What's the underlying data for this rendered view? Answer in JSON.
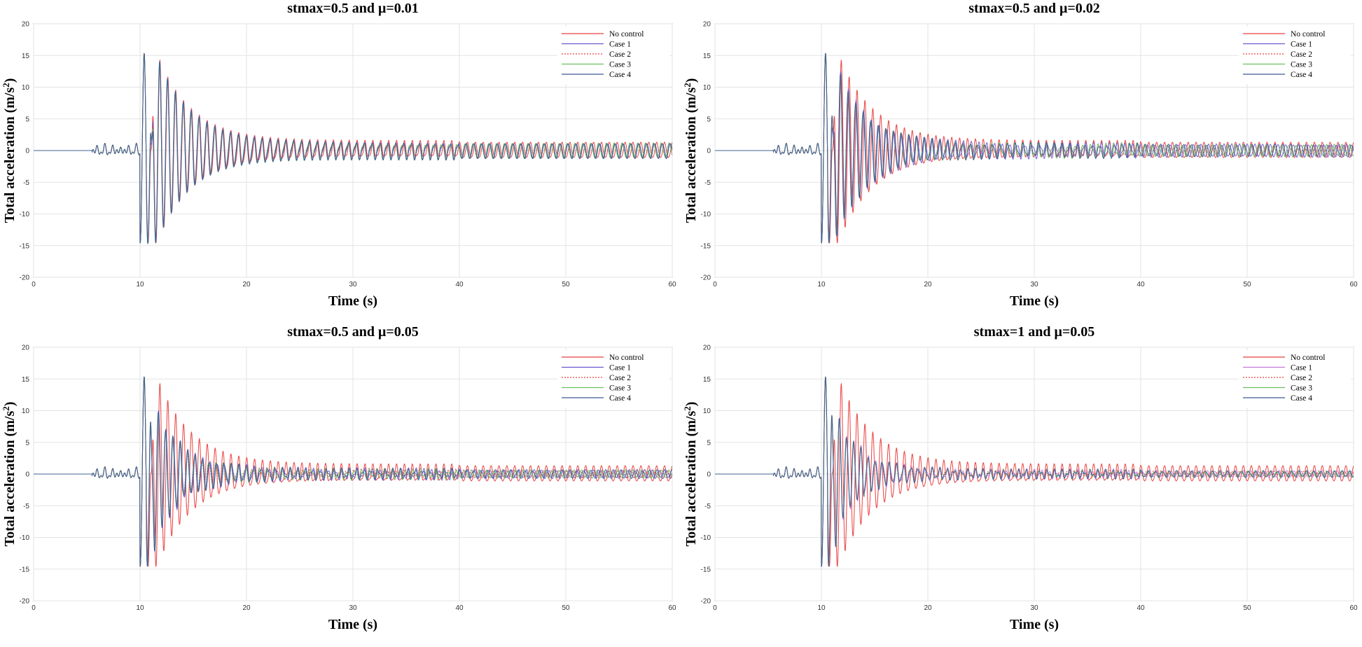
{
  "chart_data": [
    {
      "type": "line",
      "title": "stmax=0.5 and μ=0.01",
      "xlabel": "Time (s)",
      "ylabel_main": "Total acceleration (m/s",
      "ylabel_sup": "2",
      "ylabel_end": ")",
      "xlim": [
        0,
        60
      ],
      "ylim": [
        -20,
        20
      ],
      "xticks": [
        0,
        10,
        20,
        30,
        40,
        50,
        60
      ],
      "yticks": [
        20,
        15,
        10,
        5,
        0,
        -5,
        -10,
        -15,
        -20
      ],
      "grid": true,
      "legend_position": "top-right",
      "series": [
        {
          "name": "No control",
          "color": "#e8413e",
          "dash": "solid",
          "reduction": 1.0
        },
        {
          "name": "Case 1",
          "color": "#6a5acd",
          "dash": "solid",
          "reduction": 0.98
        },
        {
          "name": "Case 2",
          "color": "#e8413e",
          "dash": "dotted",
          "reduction": 0.97
        },
        {
          "name": "Case 3",
          "color": "#6abf5e",
          "dash": "solid",
          "reduction": 0.97
        },
        {
          "name": "Case 4",
          "color": "#3a5a98",
          "dash": "solid",
          "reduction": 0.98
        }
      ]
    },
    {
      "type": "line",
      "title": "stmax=0.5 and μ=0.02",
      "xlabel": "Time (s)",
      "ylabel_main": "Total acceleration (m/s",
      "ylabel_sup": "2",
      "ylabel_end": ")",
      "xlim": [
        0,
        60
      ],
      "ylim": [
        -20,
        20
      ],
      "xticks": [
        0,
        10,
        20,
        30,
        40,
        50,
        60
      ],
      "yticks": [
        20,
        15,
        10,
        5,
        0,
        -5,
        -10,
        -15,
        -20
      ],
      "grid": true,
      "legend_position": "top-right",
      "series": [
        {
          "name": "No control",
          "color": "#e8413e",
          "dash": "solid",
          "reduction": 1.0
        },
        {
          "name": "Case 1",
          "color": "#6a5acd",
          "dash": "solid",
          "reduction": 0.85
        },
        {
          "name": "Case 2",
          "color": "#e8413e",
          "dash": "dotted",
          "reduction": 0.8
        },
        {
          "name": "Case 3",
          "color": "#6abf5e",
          "dash": "solid",
          "reduction": 0.8
        },
        {
          "name": "Case 4",
          "color": "#3a5a98",
          "dash": "solid",
          "reduction": 0.82
        }
      ]
    },
    {
      "type": "line",
      "title": "stmax=0.5 and μ=0.05",
      "xlabel": "Time (s)",
      "ylabel_main": "Total acceleration (m/s",
      "ylabel_sup": "2",
      "ylabel_end": ")",
      "xlim": [
        0,
        60
      ],
      "ylim": [
        -20,
        20
      ],
      "xticks": [
        0,
        10,
        20,
        30,
        40,
        50,
        60
      ],
      "yticks": [
        20,
        15,
        10,
        5,
        0,
        -5,
        -10,
        -15,
        -20
      ],
      "grid": true,
      "legend_position": "top-right",
      "series": [
        {
          "name": "No control",
          "color": "#e8413e",
          "dash": "solid",
          "reduction": 1.0
        },
        {
          "name": "Case 1",
          "color": "#6a5acd",
          "dash": "solid",
          "reduction": 0.62
        },
        {
          "name": "Case 2",
          "color": "#e8413e",
          "dash": "dotted",
          "reduction": 0.55
        },
        {
          "name": "Case 3",
          "color": "#6abf5e",
          "dash": "solid",
          "reduction": 0.57
        },
        {
          "name": "Case 4",
          "color": "#3a5a98",
          "dash": "solid",
          "reduction": 0.6
        }
      ]
    },
    {
      "type": "line",
      "title": "stmax=1 and μ=0.05",
      "xlabel": "Time (s)",
      "ylabel_main": "Total acceleration (m/s",
      "ylabel_sup": "2",
      "ylabel_end": ")",
      "xlim": [
        0,
        60
      ],
      "ylim": [
        -20,
        20
      ],
      "xticks": [
        0,
        10,
        20,
        30,
        40,
        50,
        60
      ],
      "yticks": [
        20,
        15,
        10,
        5,
        0,
        -5,
        -10,
        -15,
        -20
      ],
      "grid": true,
      "legend_position": "top-right",
      "series": [
        {
          "name": "No control",
          "color": "#e8413e",
          "dash": "solid",
          "reduction": 1.0
        },
        {
          "name": "Case 1",
          "color": "#c27ad9",
          "dash": "solid",
          "reduction": 0.5
        },
        {
          "name": "Case 2",
          "color": "#e8413e",
          "dash": "dotted",
          "reduction": 0.45
        },
        {
          "name": "Case 3",
          "color": "#6abf5e",
          "dash": "solid",
          "reduction": 0.47
        },
        {
          "name": "Case 4",
          "color": "#3a5a98",
          "dash": "solid",
          "reduction": 0.48
        }
      ]
    }
  ]
}
